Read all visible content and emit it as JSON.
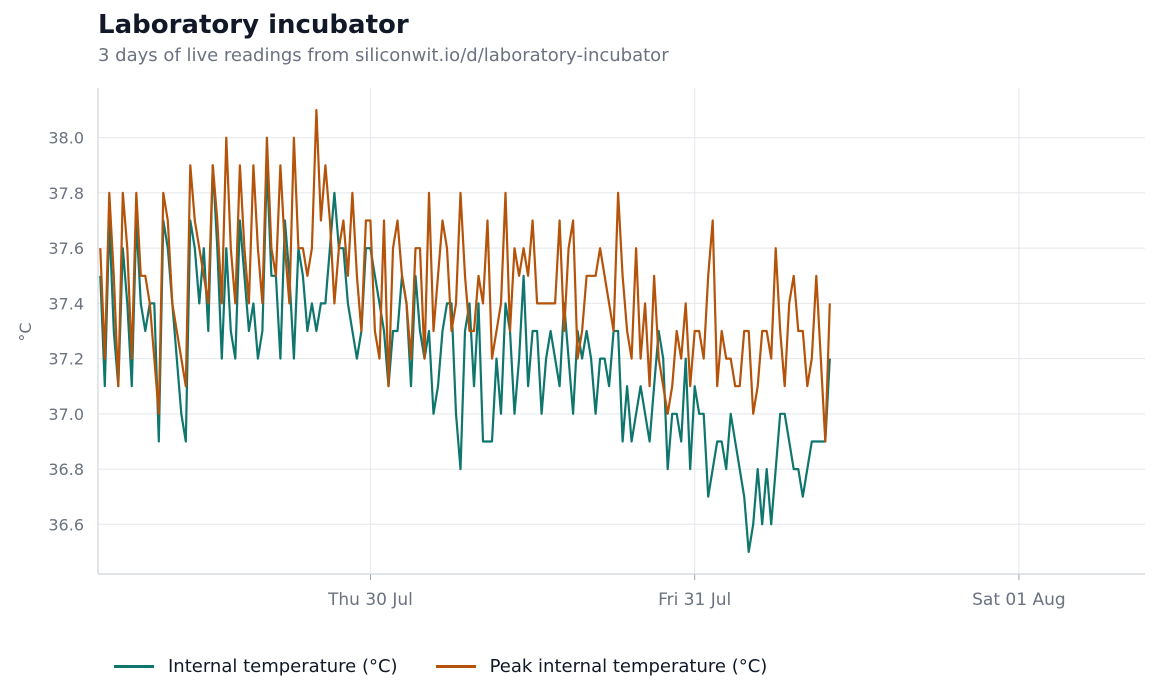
{
  "title": "Laboratory incubator",
  "subtitle": "3 days of live readings from siliconwit.io/d/laboratory-incubator",
  "chart_data": {
    "type": "line",
    "xlabel": "",
    "ylabel": "°C",
    "ylim": [
      36.42,
      38.18
    ],
    "yticks": [
      36.6,
      36.8,
      37.0,
      37.2,
      37.4,
      37.6,
      37.8,
      38.0
    ],
    "xlim": [
      "2025-07-29T03:50",
      "2025-08-01T09:20"
    ],
    "xticks": [
      {
        "t": "2025-07-30T00:00",
        "label": "Thu 30 Jul"
      },
      {
        "t": "2025-07-31T00:00",
        "label": "Fri 31 Jul"
      },
      {
        "t": "2025-08-01T00:00",
        "label": "Sat 01 Aug"
      }
    ],
    "grid": true,
    "legend_position": "bottom",
    "series_start": "2025-07-29T04:00",
    "interval_minutes": 20,
    "series": [
      {
        "name": "Internal temperature (°C)",
        "color": "#0f766e",
        "values": [
          37.5,
          37.1,
          37.7,
          37.3,
          37.1,
          37.6,
          37.4,
          37.1,
          37.7,
          37.4,
          37.3,
          37.4,
          37.4,
          36.9,
          37.7,
          37.6,
          37.4,
          37.2,
          37.0,
          36.9,
          37.7,
          37.6,
          37.4,
          37.6,
          37.3,
          37.9,
          37.6,
          37.2,
          37.6,
          37.3,
          37.2,
          37.7,
          37.5,
          37.3,
          37.4,
          37.2,
          37.3,
          37.9,
          37.5,
          37.5,
          37.2,
          37.7,
          37.5,
          37.2,
          37.6,
          37.5,
          37.3,
          37.4,
          37.3,
          37.4,
          37.4,
          37.6,
          37.8,
          37.6,
          37.6,
          37.4,
          37.3,
          37.2,
          37.3,
          37.6,
          37.6,
          37.5,
          37.4,
          37.3,
          37.1,
          37.3,
          37.3,
          37.5,
          37.4,
          37.1,
          37.5,
          37.3,
          37.2,
          37.3,
          37.0,
          37.1,
          37.3,
          37.4,
          37.4,
          37.0,
          36.8,
          37.3,
          37.4,
          37.1,
          37.4,
          36.9,
          36.9,
          36.9,
          37.2,
          37.0,
          37.4,
          37.3,
          37.0,
          37.2,
          37.5,
          37.1,
          37.3,
          37.3,
          37.0,
          37.2,
          37.3,
          37.2,
          37.1,
          37.4,
          37.2,
          37.0,
          37.3,
          37.2,
          37.3,
          37.2,
          37.0,
          37.2,
          37.2,
          37.1,
          37.3,
          37.3,
          36.9,
          37.1,
          36.9,
          37.0,
          37.1,
          37.0,
          36.9,
          37.1,
          37.3,
          37.2,
          36.8,
          37.0,
          37.0,
          36.9,
          37.2,
          36.8,
          37.1,
          37.0,
          37.0,
          36.7,
          36.8,
          36.9,
          36.9,
          36.8,
          37.0,
          36.9,
          36.8,
          36.7,
          36.5,
          36.6,
          36.8,
          36.6,
          36.8,
          36.6,
          36.8,
          37.0,
          37.0,
          36.9,
          36.8,
          36.8,
          36.7,
          36.8,
          36.9,
          36.9,
          36.9,
          36.9,
          37.2
        ]
      },
      {
        "name": "Peak internal temperature (°C)",
        "color": "#b45309",
        "values": [
          37.6,
          37.2,
          37.8,
          37.5,
          37.1,
          37.8,
          37.6,
          37.2,
          37.8,
          37.5,
          37.5,
          37.4,
          37.2,
          37.0,
          37.8,
          37.7,
          37.4,
          37.3,
          37.2,
          37.1,
          37.9,
          37.7,
          37.6,
          37.5,
          37.4,
          37.9,
          37.7,
          37.4,
          38.0,
          37.6,
          37.4,
          37.9,
          37.6,
          37.4,
          37.9,
          37.6,
          37.4,
          38.0,
          37.6,
          37.5,
          37.9,
          37.6,
          37.4,
          38.0,
          37.6,
          37.6,
          37.5,
          37.6,
          38.1,
          37.7,
          37.9,
          37.7,
          37.4,
          37.6,
          37.7,
          37.5,
          37.8,
          37.5,
          37.3,
          37.7,
          37.7,
          37.3,
          37.2,
          37.7,
          37.1,
          37.6,
          37.7,
          37.5,
          37.4,
          37.2,
          37.6,
          37.6,
          37.2,
          37.8,
          37.3,
          37.5,
          37.7,
          37.6,
          37.3,
          37.4,
          37.8,
          37.5,
          37.3,
          37.3,
          37.5,
          37.4,
          37.7,
          37.2,
          37.3,
          37.4,
          37.8,
          37.3,
          37.6,
          37.5,
          37.6,
          37.5,
          37.7,
          37.4,
          37.4,
          37.4,
          37.4,
          37.4,
          37.7,
          37.3,
          37.6,
          37.7,
          37.2,
          37.3,
          37.5,
          37.5,
          37.5,
          37.6,
          37.5,
          37.4,
          37.3,
          37.8,
          37.5,
          37.3,
          37.2,
          37.6,
          37.2,
          37.4,
          37.1,
          37.5,
          37.2,
          37.1,
          37.0,
          37.1,
          37.3,
          37.2,
          37.4,
          37.1,
          37.3,
          37.3,
          37.2,
          37.5,
          37.7,
          37.1,
          37.3,
          37.2,
          37.2,
          37.1,
          37.1,
          37.3,
          37.3,
          37.0,
          37.1,
          37.3,
          37.3,
          37.2,
          37.6,
          37.3,
          37.1,
          37.4,
          37.5,
          37.3,
          37.3,
          37.1,
          37.2,
          37.5,
          37.2,
          36.9,
          37.4
        ]
      }
    ]
  }
}
